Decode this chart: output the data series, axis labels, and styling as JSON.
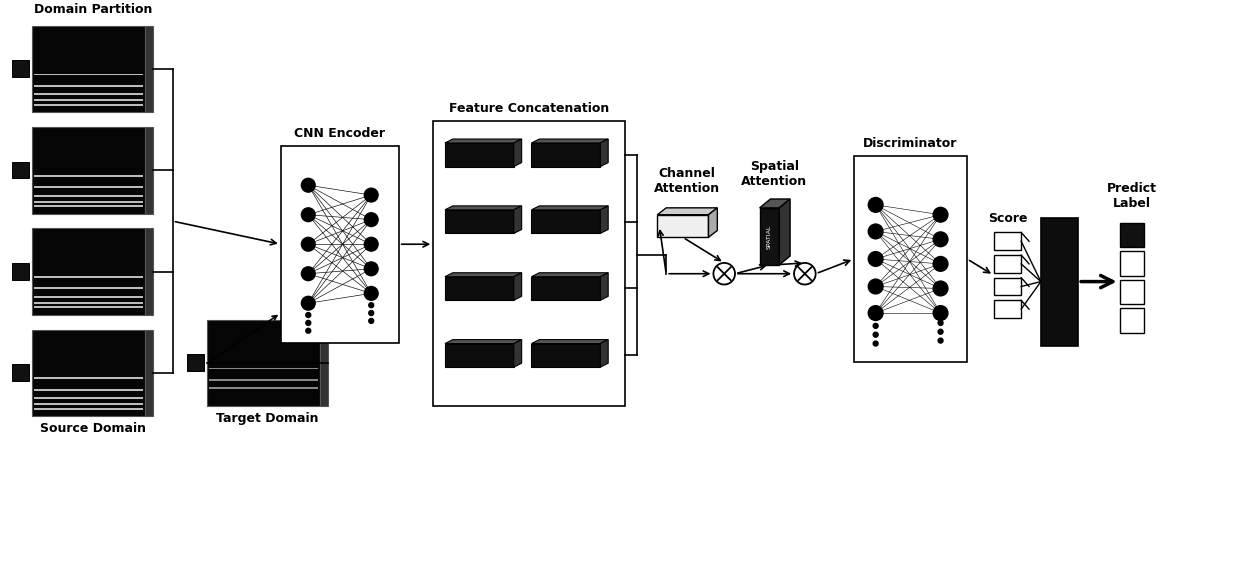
{
  "bg_color": "#ffffff",
  "labels": {
    "domain_partition": "Domain Partition",
    "source_domain": "Source Domain",
    "target_domain": "Target Domain",
    "cnn_encoder": "CNN Encoder",
    "feature_concat": "Feature Concatenation",
    "channel_attention": "Channel\nAttention",
    "spatial_attention": "Spatial\nAttention",
    "discriminator": "Discriminator",
    "score": "Score",
    "predict_label": "Predict\nLabel"
  },
  "colors": {
    "black": "#000000",
    "dark": "#111111",
    "mid_dark": "#222222",
    "dark_gray": "#444444",
    "light_box": "#e8e8e8",
    "mid_gray": "#aaaaaa",
    "white": "#ffffff"
  }
}
